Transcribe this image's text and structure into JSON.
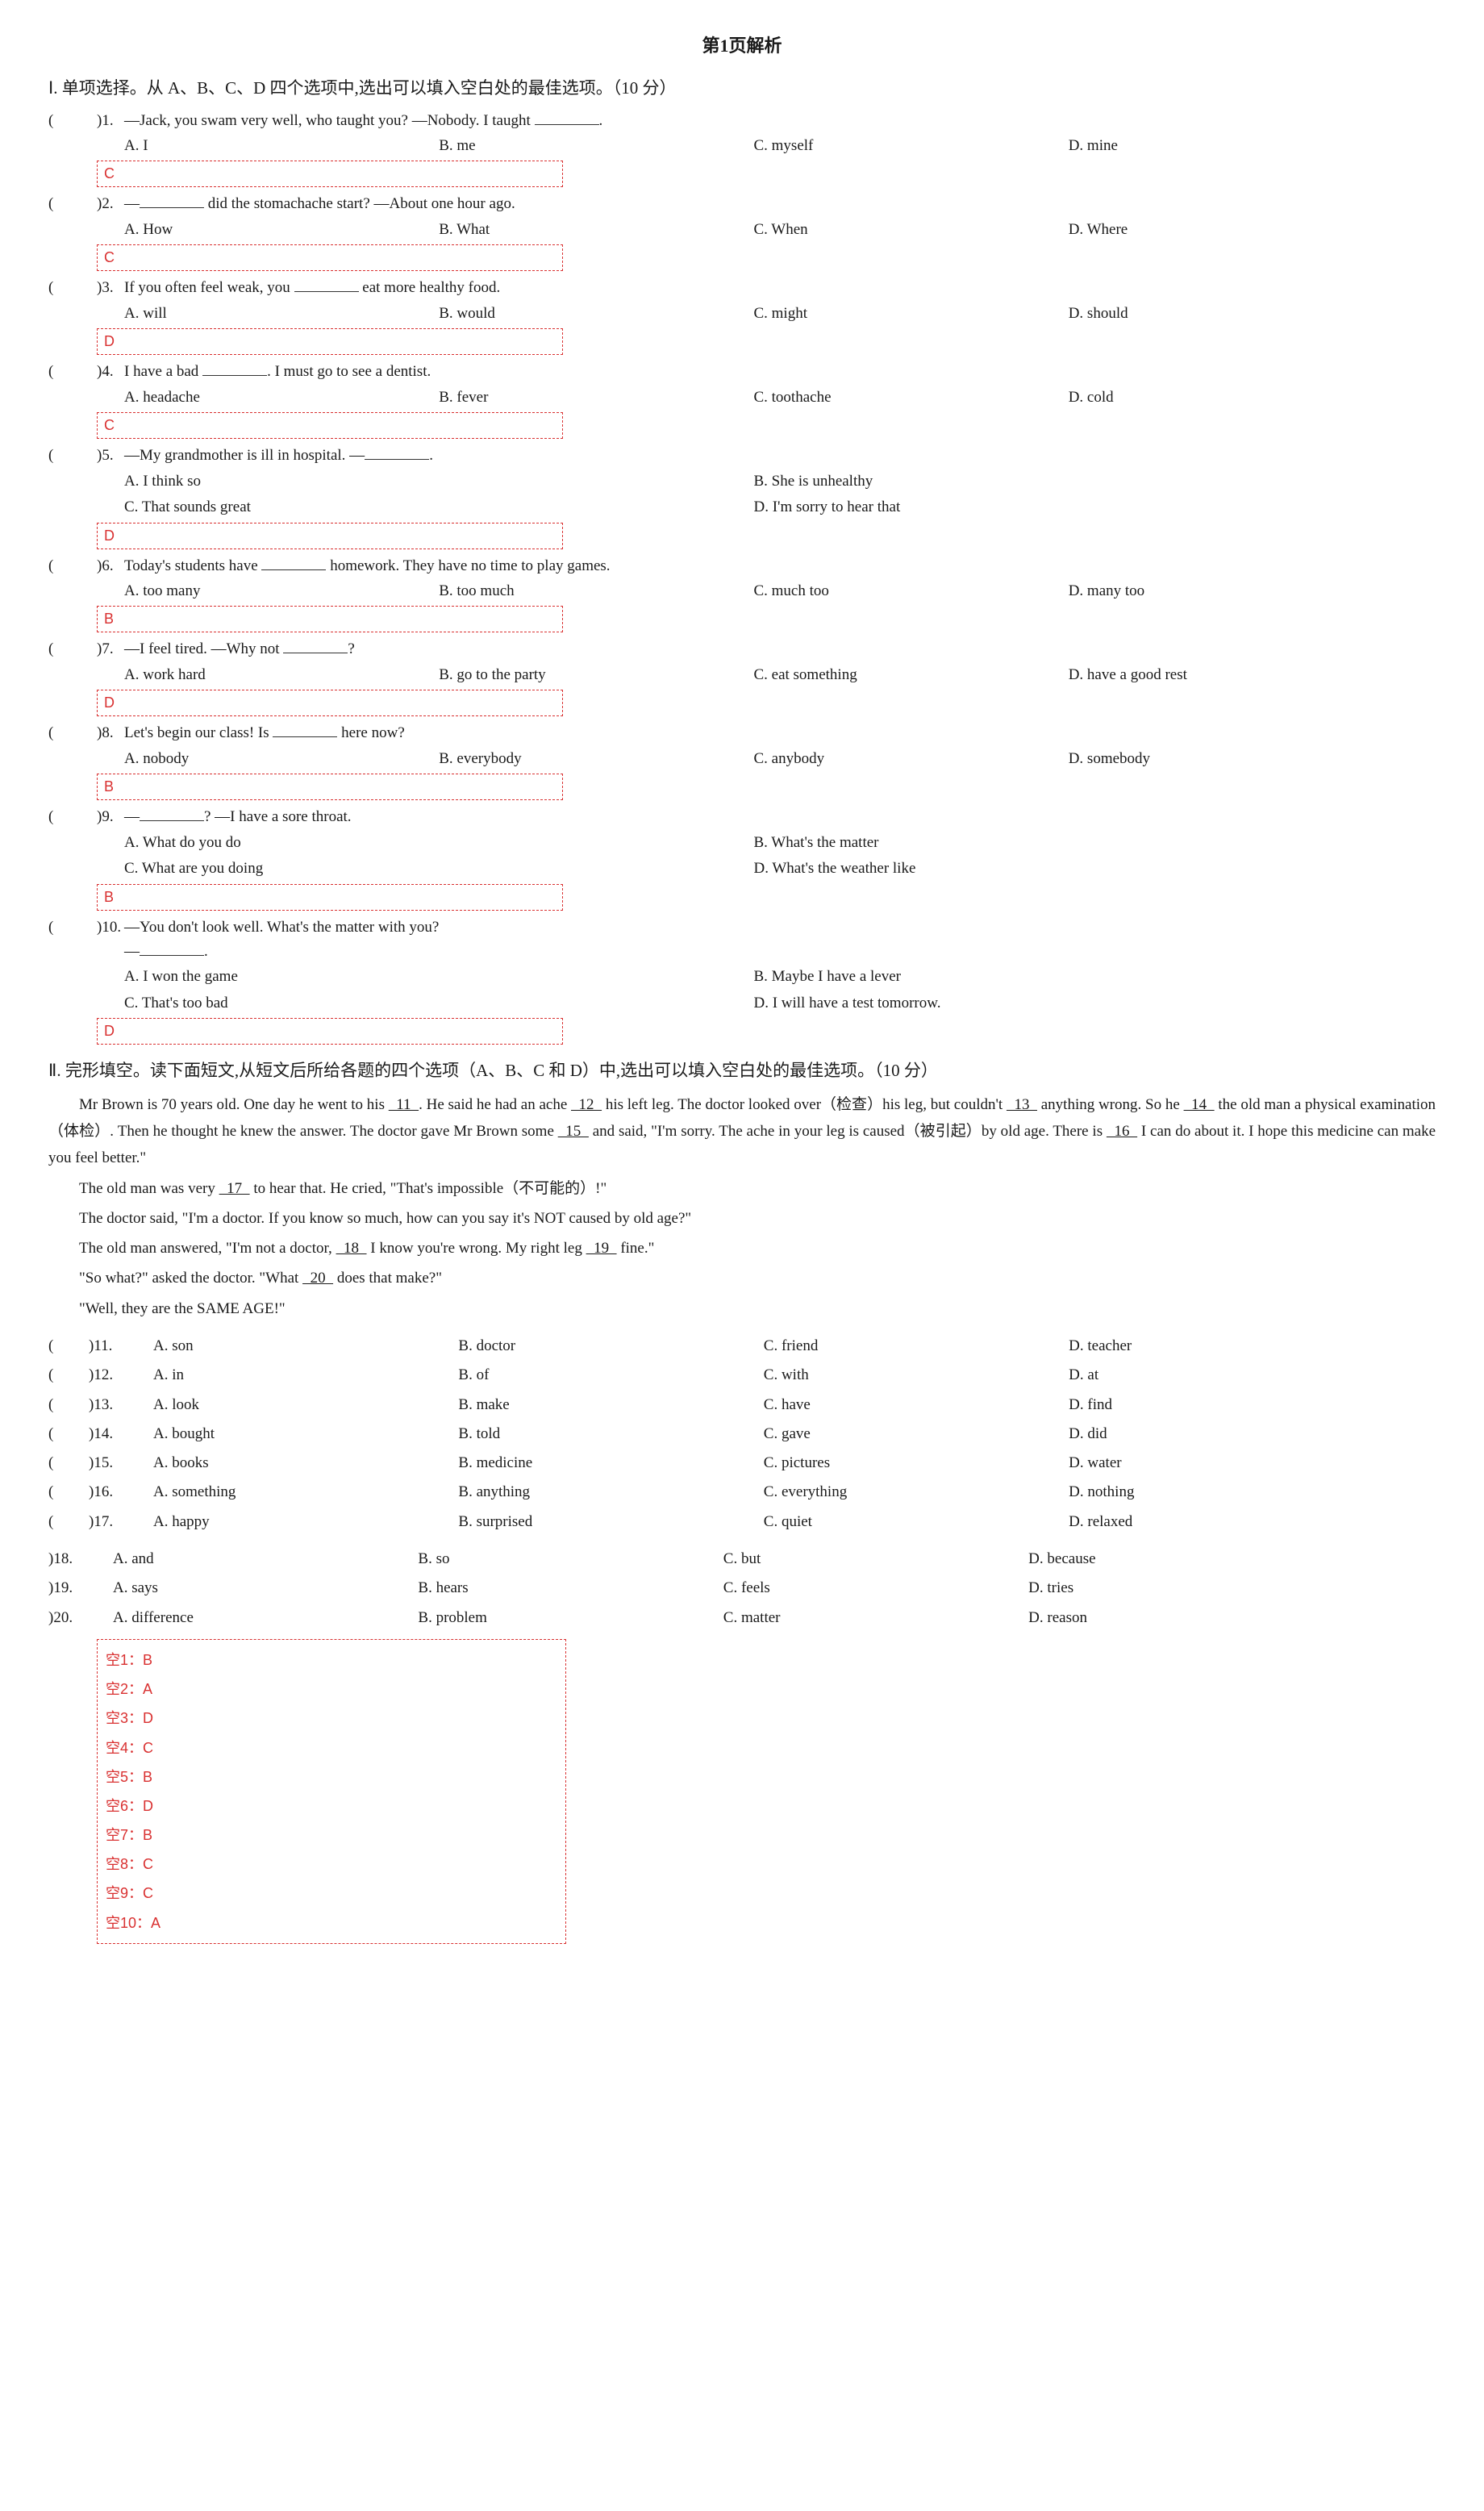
{
  "pageTitle": "第1页解析",
  "sectionI": {
    "heading": "Ⅰ. 单项选择。从 A、B、C、D 四个选项中,选出可以填入空白处的最佳选项。（10 分）",
    "questions": [
      {
        "num": "1.",
        "text": "—Jack, you swam very well, who taught you?  —Nobody. I taught ________.",
        "opts": [
          "A. I",
          "B. me",
          "C. myself",
          "D. mine"
        ],
        "ans": "C"
      },
      {
        "num": "2.",
        "text": "—________ did the stomachache start?  —About one hour ago.",
        "opts": [
          "A. How",
          "B. What",
          "C. When",
          "D. Where"
        ],
        "ans": "C"
      },
      {
        "num": "3.",
        "text": "If you often feel weak, you ________ eat more healthy food.",
        "opts": [
          "A. will",
          "B. would",
          "C. might",
          "D. should"
        ],
        "ans": "D"
      },
      {
        "num": "4.",
        "text": "I have a bad ________. I must go to see a dentist.",
        "opts": [
          "A. headache",
          "B. fever",
          "C. toothache",
          "D. cold"
        ],
        "ans": "C"
      },
      {
        "num": "5.",
        "text": "—My grandmother is ill in hospital.  —________.",
        "opts": [
          "A. I think so",
          "B. She is unhealthy",
          "C. That sounds great",
          "D. I'm sorry to hear that"
        ],
        "ans": "D",
        "twoCol": true
      },
      {
        "num": "6.",
        "text": "Today's students have ________ homework. They have no time to play games.",
        "opts": [
          "A. too many",
          "B. too much",
          "C. much too",
          "D. many too"
        ],
        "ans": "B"
      },
      {
        "num": "7.",
        "text": "—I feel tired.  —Why not ________?",
        "opts": [
          "A. work hard",
          "B. go to the party",
          "C. eat something",
          "D. have a good rest"
        ],
        "ans": "D"
      },
      {
        "num": "8.",
        "text": "Let's begin our class! Is ________ here now?",
        "opts": [
          "A. nobody",
          "B. everybody",
          "C. anybody",
          "D. somebody"
        ],
        "ans": "B"
      },
      {
        "num": "9.",
        "text": "—________?  —I have a sore throat.",
        "opts": [
          "A. What do you do",
          "B. What's the matter",
          "C. What are you doing",
          "D. What's the weather like"
        ],
        "ans": "B",
        "twoCol": true
      },
      {
        "num": "10.",
        "text": "—You don't look well. What's the matter with you?\n—________.",
        "opts": [
          "A. I won the game",
          "B. Maybe I have a lever",
          "C. That's too bad",
          "D. I will have a test tomorrow."
        ],
        "ans": "D",
        "twoCol": true
      }
    ]
  },
  "sectionII": {
    "heading": "Ⅱ. 完形填空。读下面短文,从短文后所给各题的四个选项（A、B、C 和 D）中,选出可以填入空白处的最佳选项。（10 分）",
    "passage": [
      "Mr Brown is 70 years old. One day he went to his __11__. He said he had an ache __12__ his left leg. The doctor looked over（检查）his leg, but couldn't __13__ anything wrong. So he __14__ the old man a physical examination（体检）. Then he thought he knew the answer. The doctor gave Mr Brown some __15__ and said, \"I'm sorry. The ache in your leg is caused（被引起）by old age. There is __16__ I can do about it. I hope this medicine can make you feel better.\"",
      "The old man was very __17__ to hear that. He cried, \"That's impossible（不可能的）!\"",
      "The doctor said, \"I'm a doctor. If you know so much, how can you say it's NOT caused by old age?\"",
      "The old man answered, \"I'm not a doctor, __18__ I know you're wrong. My right leg __19__ fine.\"",
      "\"So what?\" asked the doctor. \"What __20__ does that make?\"",
      "\"Well, they are the SAME AGE!\""
    ],
    "clozeA": [
      {
        "num": "11.",
        "opts": [
          "A. son",
          "B. doctor",
          "C. friend",
          "D. teacher"
        ]
      },
      {
        "num": "12.",
        "opts": [
          "A. in",
          "B. of",
          "C. with",
          "D. at"
        ]
      },
      {
        "num": "13.",
        "opts": [
          "A. look",
          "B. make",
          "C. have",
          "D. find"
        ]
      },
      {
        "num": "14.",
        "opts": [
          "A. bought",
          "B. told",
          "C. gave",
          "D. did"
        ]
      },
      {
        "num": "15.",
        "opts": [
          "A. books",
          "B. medicine",
          "C. pictures",
          "D. water"
        ]
      },
      {
        "num": "16.",
        "opts": [
          "A. something",
          "B. anything",
          "C. everything",
          "D. nothing"
        ]
      },
      {
        "num": "17.",
        "opts": [
          "A. happy",
          "B. surprised",
          "C. quiet",
          "D. relaxed"
        ]
      }
    ],
    "clozeB": [
      {
        "num": "18.",
        "opts": [
          "A. and",
          "B. so",
          "C. but",
          "D. because"
        ]
      },
      {
        "num": "19.",
        "opts": [
          "A. says",
          "B. hears",
          "C. feels",
          "D. tries"
        ]
      },
      {
        "num": "20.",
        "opts": [
          "A. difference",
          "B. problem",
          "C. matter",
          "D. reason"
        ]
      }
    ],
    "answers": [
      "空1：B",
      "空2：A",
      "空3：D",
      "空4：C",
      "空5：B",
      "空6：D",
      "空7：B",
      "空8：C",
      "空9：C",
      "空10：A"
    ]
  }
}
